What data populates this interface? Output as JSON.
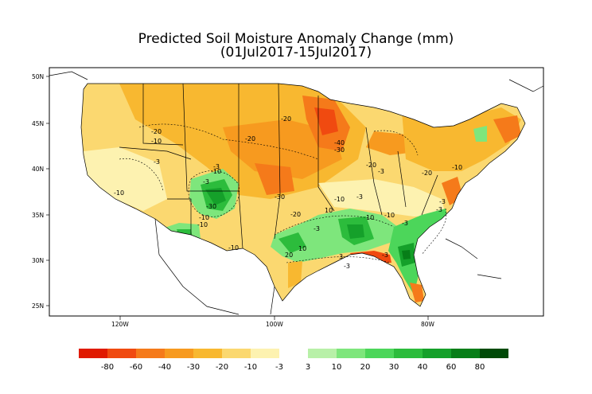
{
  "title": "Predicted Soil Moisture Anomaly Change (mm)",
  "subtitle": "(01Jul2017-15Jul2017)",
  "axes": {
    "lat_ticks": [
      "50N",
      "45N",
      "40N",
      "35N",
      "30N",
      "25N"
    ],
    "lon_ticks": [
      "120W",
      "100W",
      "80W"
    ]
  },
  "contour_labels": [
    "-20",
    "-10",
    "-3",
    "-10",
    "-20",
    "-20",
    "-3",
    "-10",
    "-40",
    "-30",
    "-20",
    "-20",
    "-3",
    "-10",
    "-30",
    "-10",
    "-20",
    "-3",
    "-30",
    "-10",
    "-10",
    "10",
    "-10",
    "-3",
    "10",
    "-3",
    "-10",
    "3",
    "10",
    "-3",
    "20",
    "-3",
    "-3",
    "-3",
    "-3"
  ],
  "legend": {
    "labels": [
      "-80",
      "-60",
      "-40",
      "-30",
      "-20",
      "-10",
      "-3",
      "3",
      "10",
      "20",
      "30",
      "40",
      "60",
      "80"
    ],
    "colors_dry": [
      "#e01a00",
      "#f04a10",
      "#f57a1a",
      "#f79a1f",
      "#f8b830",
      "#fbd870",
      "#fdf2b0"
    ],
    "colors_wet": [
      "#b8f0a8",
      "#7ee67c",
      "#4cd65a",
      "#2cbc3c",
      "#15a02a",
      "#077e18",
      "#004a08"
    ]
  }
}
